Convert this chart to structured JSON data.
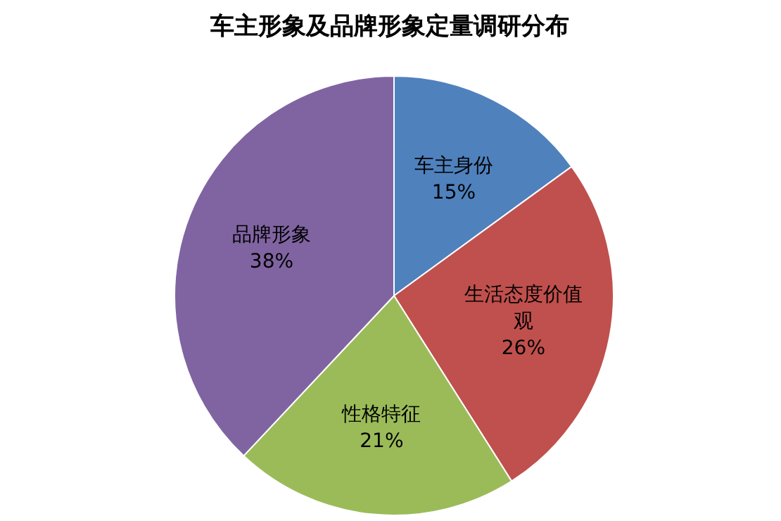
{
  "chart_data": {
    "type": "pie",
    "title": "车主形象及品牌形象定量调研分布",
    "categories": [
      "车主身份",
      "生活态度价值观",
      "性格特征",
      "品牌形象"
    ],
    "values": [
      15,
      26,
      21,
      38
    ],
    "colors": [
      "#4f81bd",
      "#c0504d",
      "#9bbb59",
      "#8064a2"
    ],
    "value_labels": [
      "15%",
      "26%",
      "21%",
      "38%"
    ],
    "legend": false
  }
}
